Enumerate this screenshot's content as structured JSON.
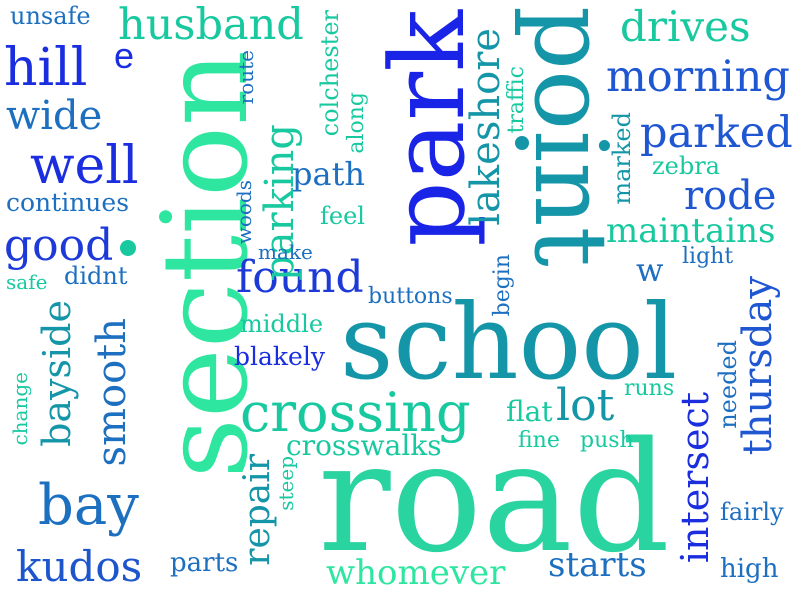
{
  "word_cloud": {
    "words": {
      "road": "road",
      "school": "school",
      "section": "section",
      "park": "park",
      "point": "point",
      "crossing": "crossing",
      "husband": "husband",
      "morning": "morning",
      "parked": "parked",
      "hill": "hill",
      "well": "well",
      "good": "good",
      "found": "found",
      "bay": "bay",
      "kudos": "kudos",
      "drives": "drives",
      "rode": "rode",
      "maintains": "maintains",
      "wide": "wide",
      "whomever": "whomever",
      "starts": "starts",
      "lot": "lot",
      "lakeshore": "lakeshore",
      "parking": "parking",
      "intersect": "intersect",
      "thursday": "thursday",
      "smooth": "smooth",
      "bayside": "bayside",
      "repair": "repair",
      "path": "path",
      "crosswalks": "crosswalks",
      "continues": "continues",
      "unsafe": "unsafe",
      "e": "e",
      "w": "w",
      "colchester": "colchester",
      "along": "along",
      "route": "route",
      "traffic": "traffic",
      "zebra": "zebra",
      "marked": "marked",
      "begin": "begin",
      "light": "light",
      "feel": "feel",
      "make": "make",
      "woods": "woods",
      "buttons": "buttons",
      "middle": "middle",
      "blakely": "blakely",
      "didnt": "didnt",
      "safe": "safe",
      "change": "change",
      "flat": "flat",
      "fine": "fine",
      "push": "push",
      "runs": "runs",
      "needed": "needed",
      "steep": "steep",
      "parts": "parts",
      "fairly": "fairly",
      "high": "high"
    },
    "dots": 3,
    "colors": {
      "background": "#ffffff",
      "royal_blue": "#1a2ee0",
      "mid_blue": "#1f56d2",
      "steel_blue": "#1d6fc0",
      "teal": "#1596a8",
      "aqua_green": "#18c9a0",
      "mint": "#2fe6a0"
    }
  }
}
